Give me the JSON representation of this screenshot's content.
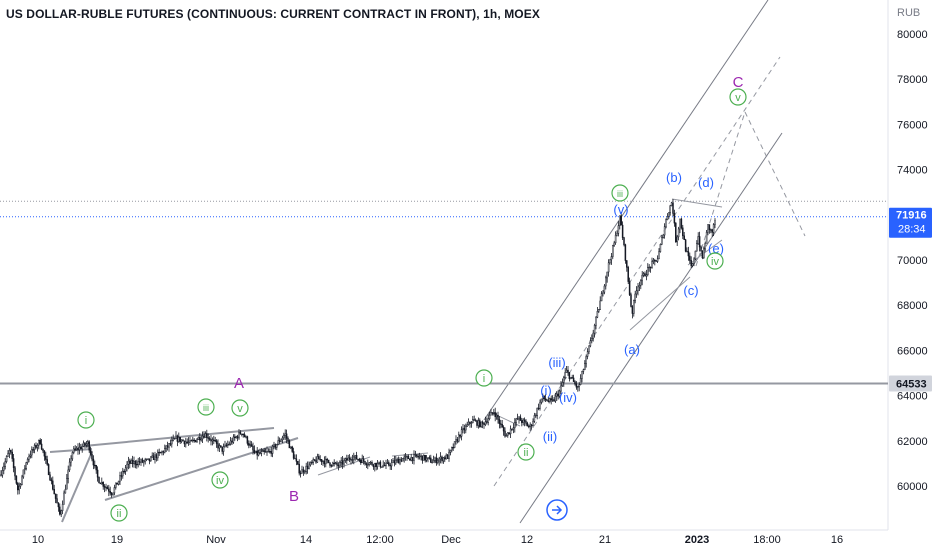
{
  "header": {
    "title": "US DOLLAR-RUBLE FUTURES (CONTINUOUS: CURRENT CONTRACT IN FRONT), 1h, MOEX"
  },
  "chart_data": {
    "type": "candlestick",
    "currency_label": "RUB",
    "y_ticks": [
      "80000",
      "78000",
      "76000",
      "74000",
      "72000",
      "70000",
      "68000",
      "66000",
      "64000",
      "62000",
      "60000"
    ],
    "x_ticks": [
      "10",
      "19",
      "Nov",
      "14",
      "12:00",
      "Dec",
      "12",
      "21",
      "2023",
      "18:00",
      "16"
    ],
    "ylim": [
      58500,
      81000
    ],
    "current_price": {
      "value": "71916",
      "countdown": "28:34",
      "color": "#2962ff"
    },
    "level_line": {
      "value": "64533",
      "color": "#9598a1"
    },
    "upper_dotted_level": 72600,
    "price_path": [
      [
        0,
        60500
      ],
      [
        10,
        61600
      ],
      [
        18,
        59800
      ],
      [
        28,
        61300
      ],
      [
        40,
        62000
      ],
      [
        50,
        60400
      ],
      [
        60,
        58700
      ],
      [
        72,
        61500
      ],
      [
        88,
        61900
      ],
      [
        98,
        60300
      ],
      [
        112,
        59700
      ],
      [
        128,
        61000
      ],
      [
        148,
        61100
      ],
      [
        162,
        61500
      ],
      [
        176,
        62100
      ],
      [
        190,
        61900
      ],
      [
        205,
        62300
      ],
      [
        222,
        61600
      ],
      [
        242,
        62400
      ],
      [
        255,
        61400
      ],
      [
        270,
        61500
      ],
      [
        285,
        62300
      ],
      [
        300,
        60600
      ],
      [
        318,
        61200
      ],
      [
        338,
        60900
      ],
      [
        352,
        61300
      ],
      [
        370,
        61000
      ],
      [
        386,
        60900
      ],
      [
        402,
        61200
      ],
      [
        420,
        61300
      ],
      [
        432,
        61100
      ],
      [
        448,
        61300
      ],
      [
        460,
        62300
      ],
      [
        472,
        62900
      ],
      [
        482,
        62700
      ],
      [
        494,
        63300
      ],
      [
        506,
        62200
      ],
      [
        518,
        63000
      ],
      [
        530,
        62600
      ],
      [
        542,
        63900
      ],
      [
        552,
        63700
      ],
      [
        560,
        64200
      ],
      [
        566,
        65100
      ],
      [
        572,
        64700
      ],
      [
        578,
        64300
      ],
      [
        586,
        65600
      ],
      [
        592,
        66600
      ],
      [
        600,
        68100
      ],
      [
        608,
        69700
      ],
      [
        614,
        70700
      ],
      [
        620,
        71900
      ],
      [
        626,
        69900
      ],
      [
        632,
        67600
      ],
      [
        636,
        68700
      ],
      [
        642,
        69200
      ],
      [
        650,
        69700
      ],
      [
        658,
        70100
      ],
      [
        664,
        71400
      ],
      [
        668,
        72100
      ],
      [
        672,
        72600
      ],
      [
        676,
        70800
      ],
      [
        680,
        71800
      ],
      [
        686,
        70400
      ],
      [
        692,
        69600
      ],
      [
        698,
        71100
      ],
      [
        702,
        70000
      ],
      [
        708,
        71500
      ],
      [
        712,
        71200
      ],
      [
        716,
        71916
      ]
    ],
    "wave_labels": [
      {
        "text": "i",
        "style": "circle",
        "color": "#4caf50"
      },
      {
        "text": "ii",
        "style": "circle",
        "color": "#4caf50"
      },
      {
        "text": "iii",
        "style": "circle",
        "color": "#4caf50"
      },
      {
        "text": "iv",
        "style": "circle",
        "color": "#4caf50"
      },
      {
        "text": "v",
        "style": "circle",
        "color": "#4caf50"
      },
      {
        "text": "A",
        "style": "plain",
        "color": "#9c27b0"
      },
      {
        "text": "B",
        "style": "plain",
        "color": "#9c27b0"
      },
      {
        "text": "i",
        "style": "circle",
        "color": "#4caf50"
      },
      {
        "text": "ii",
        "style": "circle",
        "color": "#4caf50"
      },
      {
        "text": "(i)",
        "style": "plain",
        "color": "#2962ff"
      },
      {
        "text": "(ii)",
        "style": "plain",
        "color": "#2962ff"
      },
      {
        "text": "(iii)",
        "style": "plain",
        "color": "#2962ff"
      },
      {
        "text": "(iv)",
        "style": "plain",
        "color": "#2962ff"
      },
      {
        "text": "iii",
        "style": "circle",
        "color": "#4caf50"
      },
      {
        "text": "(v)",
        "style": "plain",
        "color": "#2962ff"
      },
      {
        "text": "(a)",
        "style": "plain",
        "color": "#2962ff"
      },
      {
        "text": "(b)",
        "style": "plain",
        "color": "#2962ff"
      },
      {
        "text": "(c)",
        "style": "plain",
        "color": "#2962ff"
      },
      {
        "text": "(d)",
        "style": "plain",
        "color": "#2962ff"
      },
      {
        "text": "(e)",
        "style": "plain",
        "color": "#2962ff"
      },
      {
        "text": "iv",
        "style": "circle",
        "color": "#4caf50"
      },
      {
        "text": "C",
        "style": "plain",
        "color": "#9c27b0"
      },
      {
        "text": "v",
        "style": "circle",
        "color": "#4caf50"
      }
    ]
  }
}
